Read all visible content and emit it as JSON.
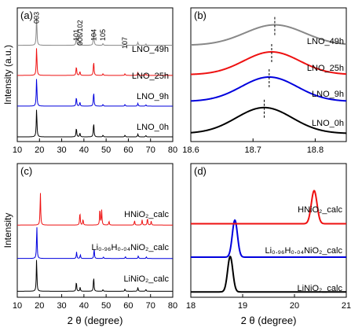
{
  "chart_data": [
    {
      "type": "line",
      "panel_label": "(a)",
      "xlabel": "",
      "ylabel": "Intensity (a.u.)",
      "xlim": [
        10,
        80
      ],
      "xticks": [
        10,
        20,
        30,
        40,
        50,
        60,
        70,
        80
      ],
      "peak_labels": [
        {
          "x": 18.7,
          "text": "003"
        },
        {
          "x": 36.6,
          "text": "101"
        },
        {
          "x": 38.2,
          "text": "006/102"
        },
        {
          "x": 44.4,
          "text": "104"
        },
        {
          "x": 48.6,
          "text": "105"
        },
        {
          "x": 58.5,
          "text": "107"
        }
      ],
      "series": [
        {
          "name": "LNO_0h",
          "color": "#000000",
          "peaks": [
            [
              18.7,
              1.0
            ],
            [
              36.6,
              0.32
            ],
            [
              38.2,
              0.14
            ],
            [
              44.4,
              0.5
            ],
            [
              48.6,
              0.06
            ],
            [
              58.5,
              0.06
            ],
            [
              64.3,
              0.1
            ],
            [
              67.9,
              0.05
            ]
          ]
        },
        {
          "name": "LNO_9h",
          "color": "#0000dd",
          "peaks": [
            [
              18.7,
              1.0
            ],
            [
              36.6,
              0.32
            ],
            [
              38.2,
              0.14
            ],
            [
              44.4,
              0.5
            ],
            [
              48.6,
              0.06
            ],
            [
              58.5,
              0.06
            ],
            [
              64.3,
              0.1
            ],
            [
              67.9,
              0.05
            ]
          ]
        },
        {
          "name": "LNO_25h",
          "color": "#ee1111",
          "peaks": [
            [
              18.7,
              1.0
            ],
            [
              36.6,
              0.32
            ],
            [
              38.2,
              0.14
            ],
            [
              44.4,
              0.5
            ],
            [
              48.6,
              0.06
            ],
            [
              58.5,
              0.06
            ],
            [
              64.3,
              0.1
            ],
            [
              67.9,
              0.05
            ]
          ]
        },
        {
          "name": "LNO_49h",
          "color": "#888888",
          "peaks": [
            [
              18.7,
              1.0
            ],
            [
              36.6,
              0.32
            ],
            [
              38.2,
              0.14
            ],
            [
              44.4,
              0.5
            ],
            [
              48.6,
              0.06
            ],
            [
              58.5,
              0.06
            ],
            [
              64.3,
              0.1
            ],
            [
              67.9,
              0.05
            ]
          ]
        }
      ]
    },
    {
      "type": "line",
      "panel_label": "(b)",
      "xlabel": "",
      "ylabel": "",
      "xlim": [
        18.6,
        18.85
      ],
      "xticks": [
        18.6,
        18.7,
        18.8
      ],
      "series": [
        {
          "name": "LNO_0h",
          "color": "#000000",
          "center": 18.718
        },
        {
          "name": "LNO_9h",
          "color": "#0000dd",
          "center": 18.726
        },
        {
          "name": "LNO_25h",
          "color": "#ee1111",
          "center": 18.73
        },
        {
          "name": "LNO_49h",
          "color": "#888888",
          "center": 18.735
        }
      ]
    },
    {
      "type": "line",
      "panel_label": "(c)",
      "xlabel": "2 θ (degree)",
      "ylabel": "Intensity",
      "xlim": [
        10,
        80
      ],
      "xticks": [
        10,
        20,
        30,
        40,
        50,
        60,
        70,
        80
      ],
      "series": [
        {
          "name": "LiNiO₂_calc",
          "color": "#000000",
          "peaks": [
            [
              18.7,
              1.0
            ],
            [
              36.6,
              0.3
            ],
            [
              38.3,
              0.12
            ],
            [
              44.4,
              0.45
            ],
            [
              48.6,
              0.05
            ],
            [
              58.5,
              0.07
            ],
            [
              64.3,
              0.12
            ],
            [
              67.9,
              0.06
            ]
          ]
        },
        {
          "name": "Li₀.₉₆H₀.₀₄NiO₂_calc",
          "color": "#0000dd",
          "peaks": [
            [
              18.8,
              1.0
            ],
            [
              36.7,
              0.2
            ],
            [
              38.4,
              0.12
            ],
            [
              44.6,
              0.3
            ],
            [
              48.8,
              0.05
            ],
            [
              58.7,
              0.06
            ],
            [
              64.5,
              0.08
            ],
            [
              68.1,
              0.05
            ]
          ]
        },
        {
          "name": "HNiO₂_calc",
          "color": "#ee1111",
          "peaks": [
            [
              20.4,
              1.0
            ],
            [
              38.2,
              0.4
            ],
            [
              39.6,
              0.18
            ],
            [
              47.2,
              0.52
            ],
            [
              48.0,
              0.45
            ],
            [
              51.3,
              0.12
            ],
            [
              62.8,
              0.14
            ],
            [
              66.2,
              0.16
            ],
            [
              68.6,
              0.22
            ],
            [
              70.3,
              0.12
            ]
          ]
        }
      ]
    },
    {
      "type": "line",
      "panel_label": "(d)",
      "xlabel": "2 θ (degree)",
      "ylabel": "",
      "xlim": [
        18,
        21
      ],
      "xticks": [
        18,
        19,
        20,
        21
      ],
      "series": [
        {
          "name": "LiNiO₂_calc",
          "color": "#000000",
          "center": 18.76
        },
        {
          "name": "Li₀.₉₆H₀.₀₄NiO₂_calc",
          "color": "#0000dd",
          "center": 18.85
        },
        {
          "name": "HNiO₂_calc",
          "color": "#ee1111",
          "center": 20.38
        }
      ]
    }
  ]
}
